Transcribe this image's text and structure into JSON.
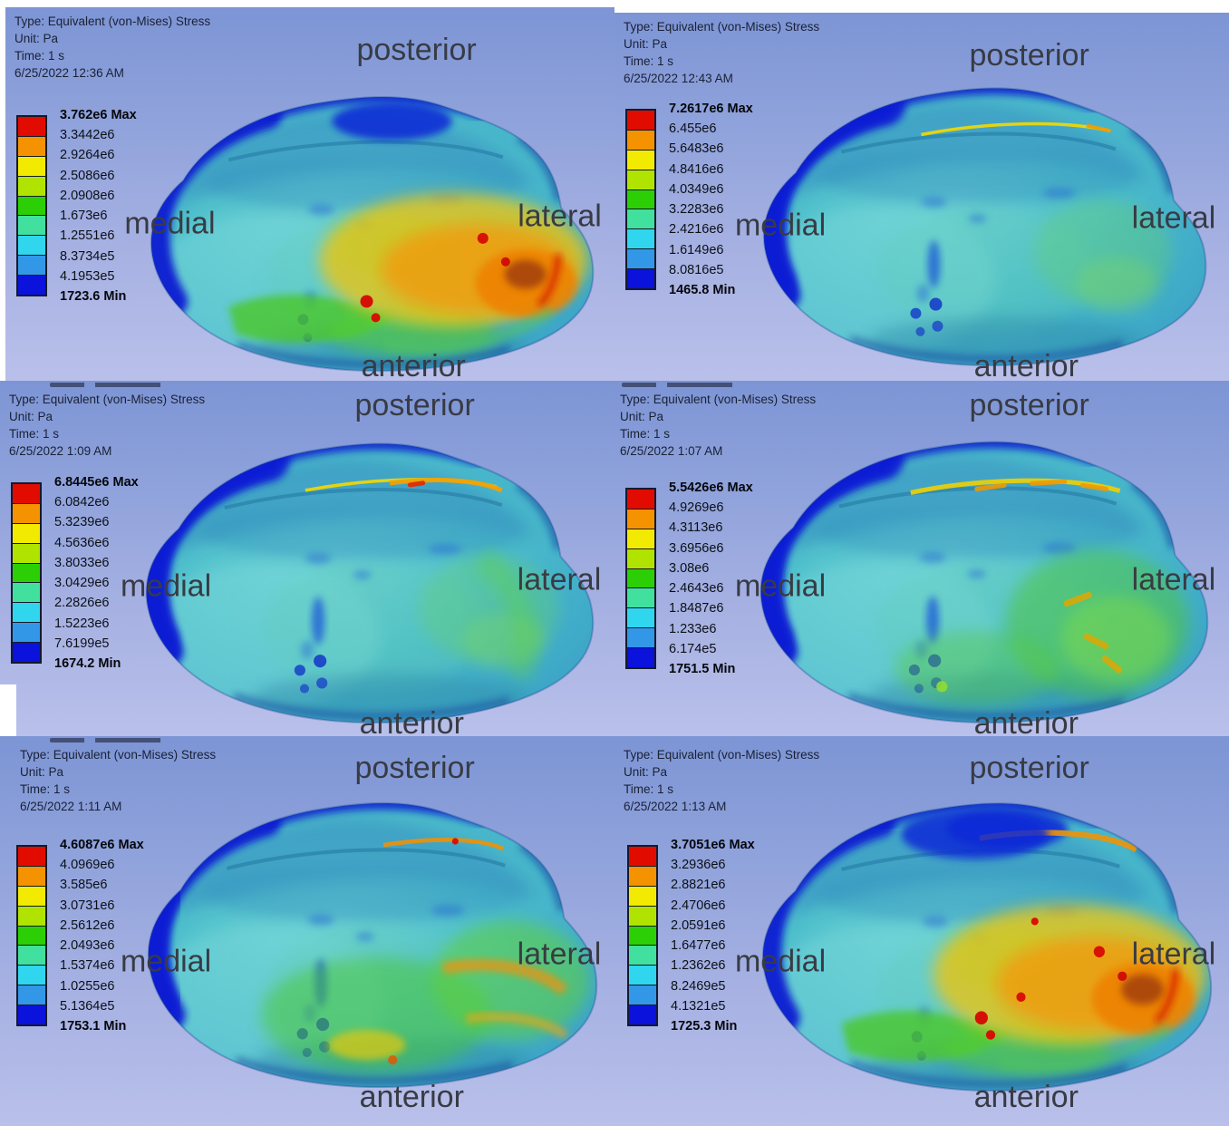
{
  "orientation": {
    "posterior": "posterior",
    "anterior": "anterior",
    "medial": "medial",
    "lateral": "lateral"
  },
  "legend_band_colors": [
    "#e10b00",
    "#f59200",
    "#f2ea00",
    "#b0e400",
    "#2ccf05",
    "#42e09e",
    "#2fd6ee",
    "#3397e8",
    "#0a12dc"
  ],
  "panels": [
    {
      "position": "top-left",
      "header": {
        "type": "Type: Equivalent (von-Mises) Stress",
        "unit": "Unit: Pa",
        "time": "Time: 1 s",
        "datetime": "6/25/2022 12:36 AM"
      },
      "legend_labels": [
        "3.762e6 Max",
        "3.3442e6",
        "2.9264e6",
        "2.5086e6",
        "2.0908e6",
        "1.673e6",
        "1.2551e6",
        "8.3734e5",
        "4.1953e5",
        "1723.6 Min"
      ],
      "stress_pattern": "high-lateral-hotspots"
    },
    {
      "position": "top-right",
      "header": {
        "type": "Type: Equivalent (von-Mises) Stress",
        "unit": "Unit: Pa",
        "time": "Time: 1 s",
        "datetime": "6/25/2022 12:43 AM"
      },
      "legend_labels": [
        "7.2617e6 Max",
        "6.455e6",
        "5.6483e6",
        "4.8416e6",
        "4.0349e6",
        "3.2283e6",
        "2.4216e6",
        "1.6149e6",
        "8.0816e5",
        "1465.8 Min"
      ],
      "stress_pattern": "low-uniform"
    },
    {
      "position": "middle-left",
      "header": {
        "type": "Type: Equivalent (von-Mises) Stress",
        "unit": "Unit: Pa",
        "time": "Time: 1 s",
        "datetime": "6/25/2022 1:09 AM"
      },
      "legend_labels": [
        "6.8445e6 Max",
        "6.0842e6",
        "5.3239e6",
        "4.5636e6",
        "3.8033e6",
        "3.0429e6",
        "2.2826e6",
        "1.5223e6",
        "7.6199e5",
        "1674.2 Min"
      ],
      "stress_pattern": "low-ridge-streak"
    },
    {
      "position": "middle-right",
      "header": {
        "type": "Type: Equivalent (von-Mises) Stress",
        "unit": "Unit: Pa",
        "time": "Time: 1 s",
        "datetime": "6/25/2022 1:07 AM"
      },
      "legend_labels": [
        "5.5426e6 Max",
        "4.9269e6",
        "4.3113e6",
        "3.6956e6",
        "3.08e6",
        "2.4643e6",
        "1.8487e6",
        "1.233e6",
        "6.174e5",
        "1751.5 Min"
      ],
      "stress_pattern": "moderate-green-lateral"
    },
    {
      "position": "bottom-left",
      "header": {
        "type": "Type: Equivalent (von-Mises) Stress",
        "unit": "Unit: Pa",
        "time": "Time: 1 s",
        "datetime": "6/25/2022 1:11 AM"
      },
      "legend_labels": [
        "4.6087e6 Max",
        "4.0969e6",
        "3.585e6",
        "3.0731e6",
        "2.5612e6",
        "2.0493e6",
        "1.5374e6",
        "1.0255e6",
        "5.1364e5",
        "1753.1 Min"
      ],
      "stress_pattern": "warm-lateral-streaks"
    },
    {
      "position": "bottom-right",
      "header": {
        "type": "Type: Equivalent (von-Mises) Stress",
        "unit": "Unit: Pa",
        "time": "Time: 1 s",
        "datetime": "6/25/2022 1:13 AM"
      },
      "legend_labels": [
        "3.7051e6 Max",
        "3.2936e6",
        "2.8821e6",
        "2.4706e6",
        "2.0591e6",
        "1.6477e6",
        "1.2362e6",
        "8.2469e5",
        "4.1321e5",
        "1725.3 Min"
      ],
      "stress_pattern": "high-lateral-hotspots-ridge"
    }
  ]
}
